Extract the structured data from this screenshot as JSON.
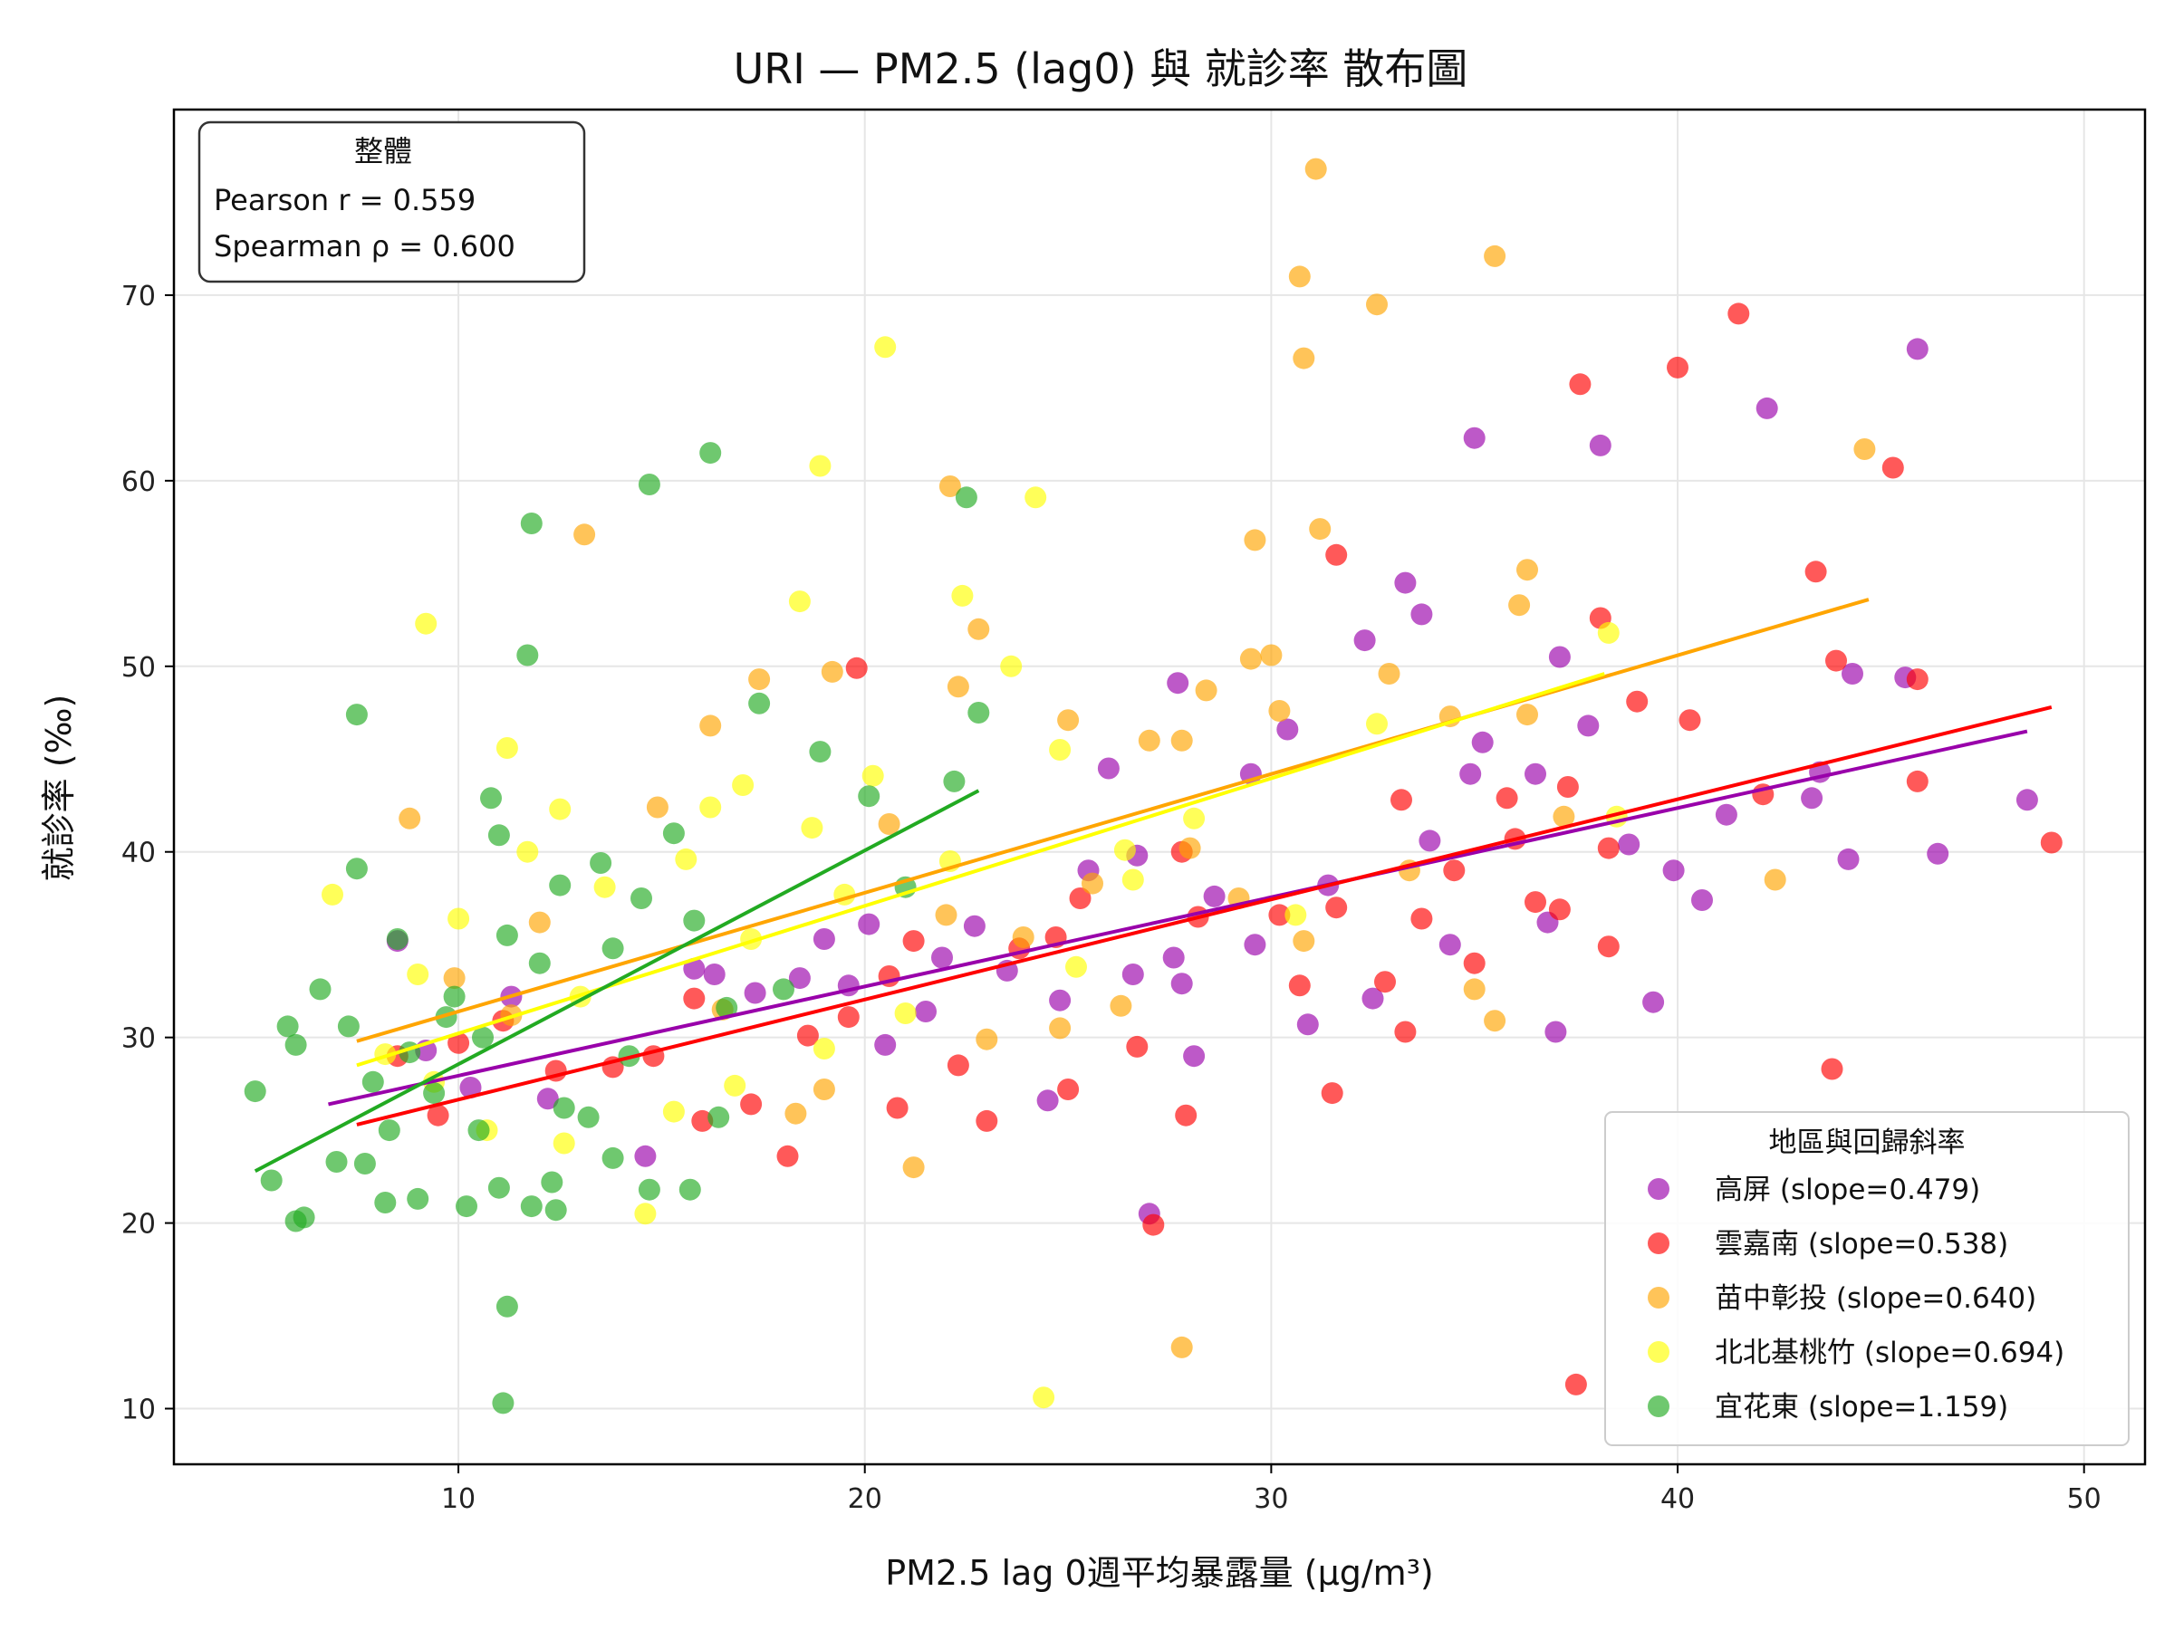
{
  "chart_data": {
    "type": "scatter",
    "title": "URI — PM2.5 (lag0) 與 就診率 散布圖",
    "xlabel": "PM2.5 lag 0週平均暴露量 (μg/m³)",
    "ylabel": "就診率 (‰)",
    "xlim": [
      3,
      51.5
    ],
    "ylim": [
      7,
      80
    ],
    "xticks": [
      10,
      20,
      30,
      40,
      50
    ],
    "yticks": [
      10,
      20,
      30,
      40,
      50,
      60,
      70
    ],
    "grid": true,
    "legend_title": "地區與回歸斜率",
    "legend_position": "lower-right",
    "stats_box": {
      "title": "整體",
      "pearson": "Pearson r = 0.559",
      "spearman": "Spearman ρ = 0.600"
    },
    "series": [
      {
        "name": "高屏 (slope=0.479)",
        "color": "#9900aa",
        "line": {
          "x": [
            6.8,
            48.6
          ],
          "y": [
            26.4,
            46.5
          ]
        },
        "points": [
          [
            45.9,
            67.1
          ],
          [
            42.2,
            63.9
          ],
          [
            35.0,
            62.3
          ],
          [
            38.1,
            61.9
          ],
          [
            33.3,
            54.5
          ],
          [
            33.7,
            52.8
          ],
          [
            32.3,
            51.4
          ],
          [
            37.1,
            50.5
          ],
          [
            44.3,
            49.6
          ],
          [
            45.6,
            49.4
          ],
          [
            27.7,
            49.1
          ],
          [
            37.8,
            46.8
          ],
          [
            30.4,
            46.6
          ],
          [
            26.0,
            44.5
          ],
          [
            35.2,
            45.9
          ],
          [
            34.9,
            44.2
          ],
          [
            29.5,
            44.2
          ],
          [
            36.5,
            44.2
          ],
          [
            43.5,
            44.3
          ],
          [
            48.6,
            42.8
          ],
          [
            43.3,
            42.9
          ],
          [
            41.2,
            42.0
          ],
          [
            33.9,
            40.6
          ],
          [
            38.8,
            40.4
          ],
          [
            46.4,
            39.9
          ],
          [
            44.2,
            39.6
          ],
          [
            39.9,
            39.0
          ],
          [
            40.6,
            37.4
          ],
          [
            28.6,
            37.6
          ],
          [
            31.4,
            38.2
          ],
          [
            29.6,
            35.0
          ],
          [
            34.4,
            35.0
          ],
          [
            36.8,
            36.2
          ],
          [
            32.5,
            32.1
          ],
          [
            39.4,
            31.9
          ],
          [
            37.0,
            30.3
          ],
          [
            30.9,
            30.7
          ],
          [
            28.1,
            29.0
          ],
          [
            27.0,
            20.5
          ],
          [
            25.5,
            39.0
          ],
          [
            26.7,
            39.8
          ],
          [
            22.7,
            36.0
          ],
          [
            24.8,
            32.0
          ],
          [
            20.5,
            29.6
          ],
          [
            18.4,
            33.2
          ],
          [
            19.6,
            32.8
          ],
          [
            21.9,
            34.3
          ],
          [
            23.5,
            33.6
          ],
          [
            27.6,
            34.3
          ],
          [
            26.6,
            33.4
          ],
          [
            27.8,
            32.9
          ],
          [
            20.1,
            36.1
          ],
          [
            17.3,
            32.4
          ],
          [
            15.8,
            33.7
          ],
          [
            14.6,
            23.6
          ],
          [
            11.3,
            32.2
          ],
          [
            9.2,
            29.3
          ],
          [
            12.2,
            26.7
          ],
          [
            16.3,
            33.4
          ],
          [
            19.0,
            35.3
          ],
          [
            21.5,
            31.4
          ],
          [
            24.5,
            26.6
          ],
          [
            8.5,
            35.2
          ],
          [
            10.3,
            27.3
          ]
        ]
      },
      {
        "name": "雲嘉南 (slope=0.538)",
        "color": "#ff0000",
        "line": {
          "x": [
            7.5,
            49.2
          ],
          "y": [
            25.3,
            47.8
          ]
        },
        "points": [
          [
            41.5,
            69.0
          ],
          [
            40.0,
            66.1
          ],
          [
            37.6,
            65.2
          ],
          [
            45.3,
            60.7
          ],
          [
            31.6,
            56.0
          ],
          [
            43.4,
            55.1
          ],
          [
            38.1,
            52.6
          ],
          [
            43.9,
            50.3
          ],
          [
            45.9,
            49.3
          ],
          [
            39.0,
            48.1
          ],
          [
            40.3,
            47.1
          ],
          [
            49.2,
            40.5
          ],
          [
            45.9,
            43.8
          ],
          [
            42.1,
            43.1
          ],
          [
            35.8,
            42.9
          ],
          [
            37.3,
            43.5
          ],
          [
            33.2,
            42.8
          ],
          [
            36.0,
            40.7
          ],
          [
            38.3,
            40.2
          ],
          [
            34.5,
            39.0
          ],
          [
            36.5,
            37.3
          ],
          [
            37.1,
            36.9
          ],
          [
            38.3,
            34.9
          ],
          [
            33.7,
            36.4
          ],
          [
            35.0,
            34.0
          ],
          [
            31.6,
            37.0
          ],
          [
            32.8,
            33.0
          ],
          [
            30.7,
            32.8
          ],
          [
            33.3,
            30.3
          ],
          [
            30.2,
            36.6
          ],
          [
            28.2,
            36.5
          ],
          [
            27.8,
            40.0
          ],
          [
            26.7,
            29.5
          ],
          [
            27.1,
            19.9
          ],
          [
            27.9,
            25.8
          ],
          [
            31.5,
            27.0
          ],
          [
            37.5,
            11.3
          ],
          [
            43.8,
            28.3
          ],
          [
            25.3,
            37.5
          ],
          [
            24.7,
            35.4
          ],
          [
            25.0,
            27.2
          ],
          [
            23.0,
            25.5
          ],
          [
            22.3,
            28.5
          ],
          [
            23.8,
            34.8
          ],
          [
            19.8,
            49.9
          ],
          [
            20.6,
            33.3
          ],
          [
            18.1,
            23.6
          ],
          [
            19.6,
            31.1
          ],
          [
            21.2,
            35.2
          ],
          [
            17.2,
            26.4
          ],
          [
            15.8,
            32.1
          ],
          [
            16.0,
            25.5
          ],
          [
            13.8,
            28.4
          ],
          [
            12.4,
            28.2
          ],
          [
            11.1,
            30.9
          ],
          [
            9.5,
            25.8
          ],
          [
            8.5,
            29.0
          ],
          [
            10.0,
            29.7
          ],
          [
            14.8,
            29.0
          ],
          [
            18.6,
            30.1
          ],
          [
            20.8,
            26.2
          ]
        ]
      },
      {
        "name": "苗中彰投 (slope=0.640)",
        "color": "#ffa500",
        "line": {
          "x": [
            7.5,
            44.7
          ],
          "y": [
            29.8,
            53.6
          ]
        },
        "points": [
          [
            31.1,
            76.8
          ],
          [
            30.7,
            71.0
          ],
          [
            35.5,
            72.1
          ],
          [
            32.6,
            69.5
          ],
          [
            30.8,
            66.6
          ],
          [
            44.6,
            61.7
          ],
          [
            22.1,
            59.7
          ],
          [
            31.2,
            57.4
          ],
          [
            29.6,
            56.8
          ],
          [
            36.3,
            55.2
          ],
          [
            36.1,
            53.3
          ],
          [
            22.8,
            52.0
          ],
          [
            28.4,
            48.7
          ],
          [
            29.5,
            50.4
          ],
          [
            30.0,
            50.6
          ],
          [
            32.9,
            49.6
          ],
          [
            25.0,
            47.1
          ],
          [
            22.3,
            48.9
          ],
          [
            19.2,
            49.7
          ],
          [
            17.4,
            49.3
          ],
          [
            27.0,
            46.0
          ],
          [
            27.8,
            46.0
          ],
          [
            30.2,
            47.6
          ],
          [
            34.4,
            47.3
          ],
          [
            36.3,
            47.4
          ],
          [
            42.4,
            38.5
          ],
          [
            37.2,
            41.9
          ],
          [
            35.0,
            32.6
          ],
          [
            35.5,
            30.9
          ],
          [
            30.8,
            35.2
          ],
          [
            28.0,
            40.2
          ],
          [
            25.6,
            38.3
          ],
          [
            23.9,
            35.4
          ],
          [
            23.0,
            29.9
          ],
          [
            21.2,
            23.0
          ],
          [
            19.0,
            27.2
          ],
          [
            16.5,
            31.5
          ],
          [
            13.1,
            57.1
          ],
          [
            12.0,
            36.2
          ],
          [
            8.8,
            41.8
          ],
          [
            9.9,
            33.2
          ],
          [
            14.9,
            42.4
          ],
          [
            11.3,
            31.2
          ],
          [
            27.8,
            13.3
          ],
          [
            24.8,
            30.5
          ],
          [
            22.0,
            36.6
          ],
          [
            18.3,
            25.9
          ],
          [
            16.2,
            46.8
          ],
          [
            20.6,
            41.5
          ],
          [
            26.3,
            31.7
          ],
          [
            29.2,
            37.5
          ],
          [
            33.4,
            39.0
          ]
        ]
      },
      {
        "name": "北北基桃竹 (slope=0.694)",
        "color": "#ffff00",
        "line": {
          "x": [
            7.5,
            38.2
          ],
          "y": [
            28.5,
            49.6
          ]
        },
        "points": [
          [
            20.5,
            67.2
          ],
          [
            18.9,
            60.8
          ],
          [
            24.2,
            59.1
          ],
          [
            18.4,
            53.5
          ],
          [
            22.4,
            53.8
          ],
          [
            9.2,
            52.3
          ],
          [
            23.6,
            50.0
          ],
          [
            38.3,
            51.8
          ],
          [
            32.6,
            46.9
          ],
          [
            24.8,
            45.5
          ],
          [
            20.2,
            44.1
          ],
          [
            17.0,
            43.6
          ],
          [
            12.5,
            42.3
          ],
          [
            11.2,
            45.6
          ],
          [
            16.2,
            42.4
          ],
          [
            26.4,
            40.1
          ],
          [
            28.1,
            41.8
          ],
          [
            38.5,
            41.9
          ],
          [
            30.6,
            36.6
          ],
          [
            25.2,
            33.8
          ],
          [
            21.0,
            31.3
          ],
          [
            19.0,
            29.4
          ],
          [
            14.6,
            20.5
          ],
          [
            24.4,
            10.6
          ],
          [
            15.3,
            26.0
          ],
          [
            12.6,
            24.3
          ],
          [
            10.7,
            25.0
          ],
          [
            8.2,
            29.1
          ],
          [
            9.0,
            33.4
          ],
          [
            13.6,
            38.1
          ],
          [
            17.2,
            35.3
          ],
          [
            6.9,
            37.7
          ],
          [
            11.7,
            40.0
          ],
          [
            15.6,
            39.6
          ],
          [
            18.7,
            41.3
          ],
          [
            22.1,
            39.5
          ],
          [
            16.8,
            27.4
          ],
          [
            10.0,
            36.4
          ],
          [
            13.0,
            32.2
          ],
          [
            19.5,
            37.7
          ],
          [
            26.6,
            38.5
          ],
          [
            9.4,
            27.6
          ]
        ]
      },
      {
        "name": "宜花東 (slope=1.159)",
        "color": "#22aa22",
        "line": {
          "x": [
            5.0,
            22.8
          ],
          "y": [
            22.8,
            43.3
          ]
        },
        "points": [
          [
            16.2,
            61.5
          ],
          [
            14.7,
            59.8
          ],
          [
            22.5,
            59.1
          ],
          [
            11.8,
            57.7
          ],
          [
            11.7,
            50.6
          ],
          [
            7.5,
            47.4
          ],
          [
            17.4,
            48.0
          ],
          [
            18.9,
            45.4
          ],
          [
            22.8,
            47.5
          ],
          [
            22.2,
            43.8
          ],
          [
            20.1,
            43.0
          ],
          [
            10.8,
            42.9
          ],
          [
            7.5,
            39.1
          ],
          [
            11.0,
            40.9
          ],
          [
            13.5,
            39.4
          ],
          [
            15.3,
            41.0
          ],
          [
            8.5,
            35.3
          ],
          [
            9.9,
            32.2
          ],
          [
            6.6,
            32.6
          ],
          [
            5.0,
            27.1
          ],
          [
            6.0,
            29.6
          ],
          [
            7.3,
            30.6
          ],
          [
            5.8,
            30.6
          ],
          [
            5.4,
            22.3
          ],
          [
            6.0,
            20.1
          ],
          [
            6.2,
            20.3
          ],
          [
            7.0,
            23.3
          ],
          [
            8.2,
            21.1
          ],
          [
            9.0,
            21.3
          ],
          [
            10.2,
            20.9
          ],
          [
            11.0,
            21.9
          ],
          [
            11.8,
            20.9
          ],
          [
            12.4,
            20.7
          ],
          [
            12.3,
            22.2
          ],
          [
            11.2,
            15.5
          ],
          [
            11.1,
            10.3
          ],
          [
            14.7,
            21.8
          ],
          [
            15.7,
            21.8
          ],
          [
            13.8,
            23.5
          ],
          [
            13.2,
            25.7
          ],
          [
            12.6,
            26.2
          ],
          [
            10.5,
            25.0
          ],
          [
            9.4,
            27.0
          ],
          [
            8.3,
            25.0
          ],
          [
            7.7,
            23.2
          ],
          [
            9.7,
            31.1
          ],
          [
            12.0,
            34.0
          ],
          [
            13.8,
            34.8
          ],
          [
            14.5,
            37.5
          ],
          [
            15.8,
            36.3
          ],
          [
            16.6,
            31.6
          ],
          [
            18.0,
            32.6
          ],
          [
            21.0,
            38.1
          ],
          [
            12.5,
            38.2
          ],
          [
            11.2,
            35.5
          ],
          [
            10.6,
            30.0
          ],
          [
            8.8,
            29.2
          ],
          [
            7.9,
            27.6
          ],
          [
            14.2,
            29.0
          ],
          [
            16.4,
            25.7
          ]
        ]
      }
    ]
  }
}
